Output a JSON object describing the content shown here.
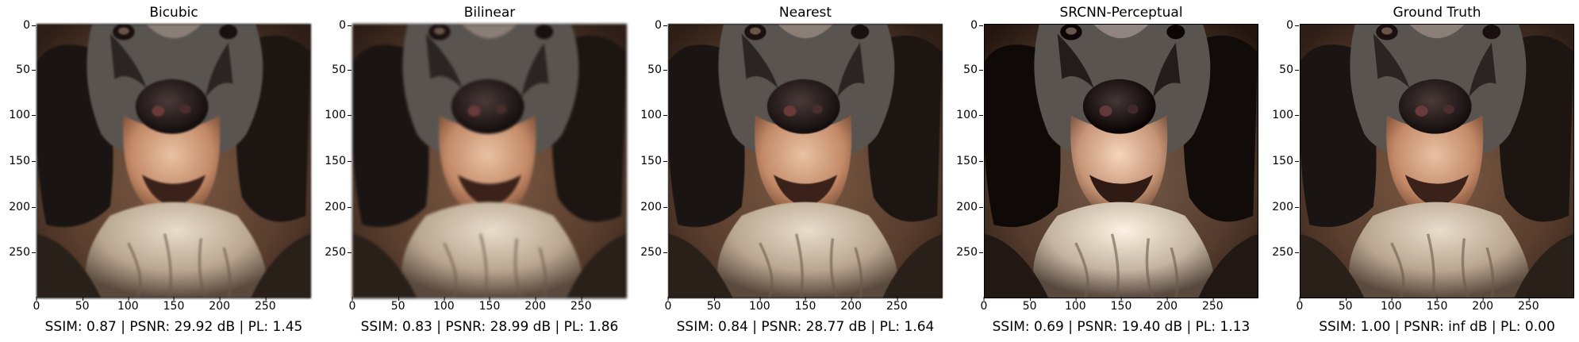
{
  "panels": [
    {
      "title": "Bicubic",
      "metrics": "SSIM: 0.87 | PSNR: 29.92 dB | PL: 1.45",
      "filter": "blur-mid"
    },
    {
      "title": "Bilinear",
      "metrics": "SSIM: 0.83 | PSNR: 28.99 dB | PL: 1.86",
      "filter": "blur-high"
    },
    {
      "title": "Nearest",
      "metrics": "SSIM: 0.84 | PSNR: 28.77 dB | PL: 1.64",
      "filter": "blur-low"
    },
    {
      "title": "SRCNN-Perceptual",
      "metrics": "SSIM: 0.69 | PSNR: 19.40 dB | PL: 1.13",
      "filter": "desat"
    },
    {
      "title": "Ground Truth",
      "metrics": "SSIM: 1.00 | PSNR: inf dB | PL: 0.00",
      "filter": "none"
    }
  ],
  "axes": {
    "yticks": [
      "0",
      "50",
      "100",
      "150",
      "200",
      "250"
    ],
    "xticks": [
      "0",
      "50",
      "100",
      "150",
      "200",
      "250"
    ]
  },
  "image_subject": "dog-face-photo"
}
